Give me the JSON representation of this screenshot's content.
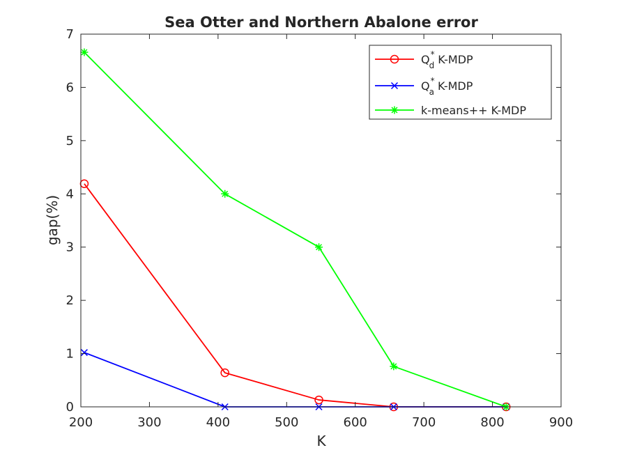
{
  "chart_data": {
    "type": "line",
    "title": "Sea Otter and Northern Abalone error",
    "xlabel": "K",
    "ylabel": "gap(%)",
    "xlim": [
      200,
      900
    ],
    "ylim": [
      0,
      7
    ],
    "xticks": [
      "200",
      "300",
      "400",
      "500",
      "600",
      "700",
      "800",
      "900"
    ],
    "yticks": [
      "0",
      "1",
      "2",
      "3",
      "4",
      "5",
      "6",
      "7"
    ],
    "grid": false,
    "legend_position": "top-right",
    "series": [
      {
        "name": "Q_d^* K-MDP",
        "legend_base": "Q",
        "legend_sub": "d",
        "legend_sup": "*",
        "legend_rest": " K-MDP",
        "color": "#ff0000",
        "marker": "circle",
        "x": [
          205,
          410,
          547,
          656,
          820
        ],
        "y": [
          4.19,
          0.64,
          0.13,
          0.0,
          0.0
        ]
      },
      {
        "name": "Q_a^* K-MDP",
        "legend_base": "Q",
        "legend_sub": "a",
        "legend_sup": "*",
        "legend_rest": " K-MDP",
        "color": "#0000ff",
        "marker": "x",
        "x": [
          205,
          410,
          547,
          656,
          820
        ],
        "y": [
          1.02,
          0.0,
          0.0,
          0.0,
          0.0
        ]
      },
      {
        "name": "k-means++ K-MDP",
        "legend_base": "k-means++ K-MDP",
        "legend_sub": "",
        "legend_sup": "",
        "legend_rest": "",
        "color": "#00ff00",
        "marker": "star",
        "x": [
          205,
          410,
          547,
          656,
          820
        ],
        "y": [
          6.66,
          4.0,
          3.0,
          0.76,
          0.0
        ]
      }
    ]
  }
}
